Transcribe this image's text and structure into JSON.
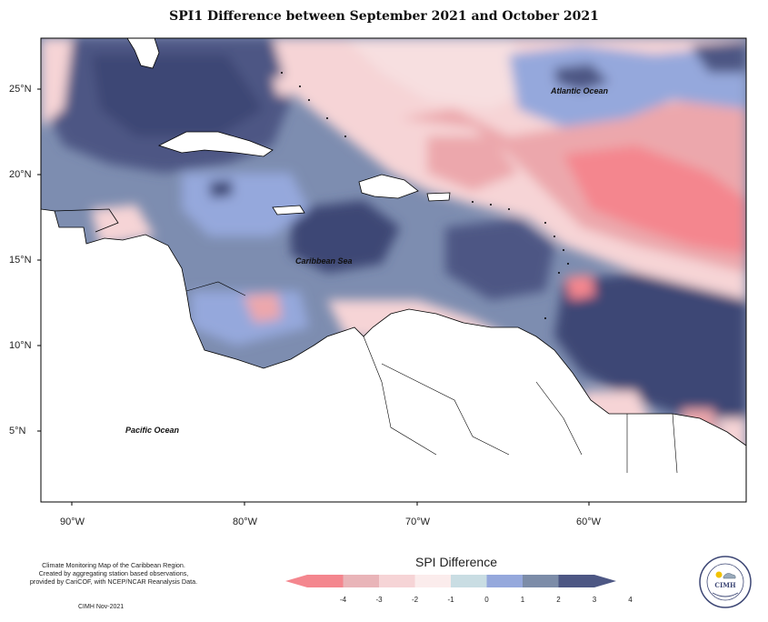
{
  "title": "SPI1 Difference between September 2021 and October 2021",
  "lat_labels": [
    "25°N",
    "20°N",
    "15°N",
    "10°N",
    "5°N"
  ],
  "lon_labels": [
    "90°W",
    "80°W",
    "70°W",
    "60°W"
  ],
  "labels": {
    "atlantic": "Atlantic Ocean",
    "caribbean": "Caribbean Sea",
    "pacific": "Pacific Ocean"
  },
  "credits": {
    "line1": "Climate Monitoring Map of the Caribbean Region.",
    "line2": "Created by aggregating station based observations,",
    "line3": "provided by CariCOF, with NCEP/NCAR Reanalysis Data.",
    "date": "CIMH Nov-2021"
  },
  "legend": {
    "title": "SPI Difference",
    "ticks": [
      "-4",
      "-3",
      "-2",
      "-1",
      "0",
      "1",
      "2",
      "3",
      "4"
    ],
    "colors": [
      "#f4868e",
      "#e9b4b8",
      "#f6d4d6",
      "#fbecec",
      "#c9dde3",
      "#95a8dc",
      "#7c8ca8",
      "#4d5784"
    ]
  },
  "logo": {
    "name": "CIMH"
  }
}
